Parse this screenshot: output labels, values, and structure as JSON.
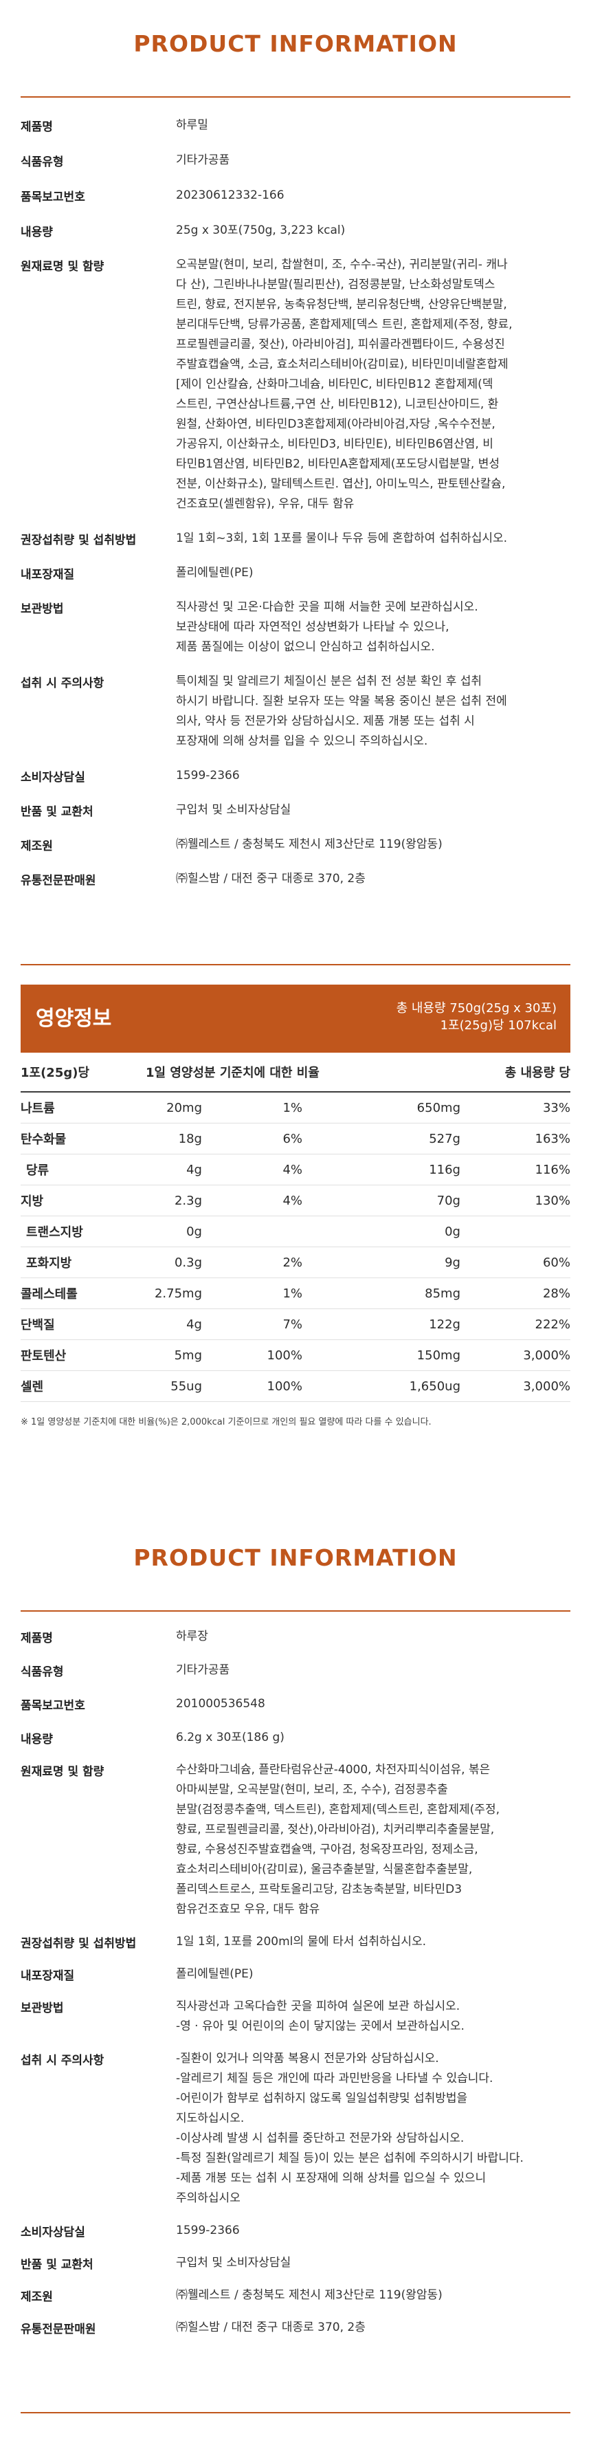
{
  "section1": {
    "title": "PRODUCT INFORMATION",
    "rows": [
      {
        "label": "제품명",
        "lines": [
          "하루밀"
        ]
      },
      {
        "label": "식품유형",
        "lines": [
          "기타가공품"
        ]
      },
      {
        "label": "품목보고번호",
        "lines": [
          "20230612332-166"
        ]
      },
      {
        "label": "내용량",
        "lines": [
          "25g x 30포(750g, 3,223 kcal)"
        ]
      },
      {
        "label": "원재료명 및 함량",
        "lines": [
          "오곡분말(현미, 보리, 찹쌀현미, 조, 수수-국산), 귀리분말(귀리- 캐나",
          "다 산), 그린바나나분말(필리핀산), 검정콩분말, 난소화성말토덱스",
          "트린, 향료, 전지분유, 농축유청단백, 분리유청단백, 산양유단백분말,",
          "분리대두단백, 당류가공품, 혼합제제[덱스 트린, 혼합제제(주정, 향료,",
          "프로필렌글리콜, 젖산), 아라비아검], 피쉬콜라겐펩타이드, 수용성진",
          "주발효캡슐액, 소금, 효소처리스테비아(감미료), 비타민미네랄혼합제",
          "[제이 인산칼슘, 산화마그네슘, 비타민C, 비타민B12 혼합제제(덱",
          "스트린, 구연산삼나트륨,구연 산, 비타민B12), 니코틴산아미드, 환",
          "원철, 산화아연, 비타민D3혼합제제(아라비아검,자당 ,옥수수전분,",
          "가공유지, 이산화규소, 비타민D3, 비타민E), 비타민B6염산염, 비",
          "타민B1염산염, 비타민B2, 비타민A혼합제제(포도당시럽분말, 변성",
          "전분, 이산화규소), 말테텍스트린. 엽산], 아미노믹스, 판토텐산칼슘,",
          "건조효모(셀렌함유), 우유, 대두 함유"
        ]
      },
      {
        "label": "권장섭취량 및 섭취방법",
        "lines": [
          "1일 1회~3회, 1회 1포를 물이나 두유 등에 혼합하여 섭취하십시오."
        ]
      },
      {
        "label": "내포장재질",
        "lines": [
          "폴리에틸렌(PE)"
        ]
      },
      {
        "label": "보관방법",
        "lines": [
          "직사광선 및 고온·다습한 곳을 피해 서늘한 곳에 보관하십시오.",
          "보관상태에 따라 자연적인 성상변화가 나타날 수 있으나,",
          "제품 품질에는 이상이 없으니 안심하고 섭취하십시오."
        ]
      },
      {
        "label": "섭취 시 주의사항",
        "lines": [
          "특이체질 및 알레르기 체질이신 분은 섭취 전 성분 확인 후 섭취",
          "하시기 바랍니다. 질환 보유자 또는 약물 복용 중이신 분은 섭취 전에",
          "의사, 약사 등 전문가와 상담하십시오. 제품 개봉 또는 섭취 시",
          "포장재에 의해 상처를 입을 수 있으니 주의하십시오."
        ]
      },
      {
        "label": "소비자상담실",
        "lines": [
          "1599-2366"
        ]
      },
      {
        "label": "반품 및 교환처",
        "lines": [
          "구입처 및 소비자상담실"
        ]
      },
      {
        "label": "제조원",
        "lines": [
          "㈜웰레스트 / 충청북도 제천시 제3산단로 119(왕암동)"
        ]
      },
      {
        "label": "유통전문판매원",
        "lines": [
          "㈜힐스밤 / 대전 중구 대종로 370, 2층"
        ]
      }
    ]
  },
  "nutrition": {
    "title": "영양정보",
    "total_line1": "총 내용량 750g(25g x 30포)",
    "total_line2": "1포(25g)당 107kcal",
    "col_serving": "1포(25g)당",
    "col_ratio": "1일 영양성분 기준치에 대한 비율",
    "col_total": "총 내용량 당",
    "rows": [
      {
        "name": "나트륨",
        "amt": "20mg",
        "pct": "1%",
        "tot": "650mg",
        "tpct": "33%",
        "sub": false
      },
      {
        "name": "탄수화물",
        "amt": "18g",
        "pct": "6%",
        "tot": "527g",
        "tpct": "163%",
        "sub": false
      },
      {
        "name": "당류",
        "amt": "4g",
        "pct": "4%",
        "tot": "116g",
        "tpct": "116%",
        "sub": true
      },
      {
        "name": "지방",
        "amt": "2.3g",
        "pct": "4%",
        "tot": "70g",
        "tpct": "130%",
        "sub": false
      },
      {
        "name": "트랜스지방",
        "amt": "0g",
        "pct": "",
        "tot": "0g",
        "tpct": "",
        "sub": true
      },
      {
        "name": "포화지방",
        "amt": "0.3g",
        "pct": "2%",
        "tot": "9g",
        "tpct": "60%",
        "sub": true
      },
      {
        "name": "콜레스테롤",
        "amt": "2.75mg",
        "pct": "1%",
        "tot": "85mg",
        "tpct": "28%",
        "sub": false
      },
      {
        "name": "단백질",
        "amt": "4g",
        "pct": "7%",
        "tot": "122g",
        "tpct": "222%",
        "sub": false
      },
      {
        "name": "판토텐산",
        "amt": "5mg",
        "pct": "100%",
        "tot": "150mg",
        "tpct": "3,000%",
        "sub": false
      },
      {
        "name": "셀렌",
        "amt": "55ug",
        "pct": "100%",
        "tot": "1,650ug",
        "tpct": "3,000%",
        "sub": false
      }
    ],
    "note": "※ 1일 영양성분 기준치에 대한 비율(%)은 2,000kcal 기준이므로 개인의 필요 열량에 따라 다를 수 있습니다."
  },
  "section2": {
    "title": "PRODUCT INFORMATION",
    "rows": [
      {
        "label": "제품명",
        "lines": [
          "하루장"
        ]
      },
      {
        "label": "식품유형",
        "lines": [
          "기타가공품"
        ]
      },
      {
        "label": "품목보고번호",
        "lines": [
          "201000536548"
        ]
      },
      {
        "label": "내용량",
        "lines": [
          "6.2g x 30포(186 g)"
        ]
      },
      {
        "label": "원재료명 및 함량",
        "lines": [
          "수산화마그네슘, 플란타럼유산균-4000, 차전자피식이섬유, 볶은",
          "아마씨분말, 오곡분말(현미, 보리, 조, 수수), 검정콩추출",
          "분말(검정콩추출액, 덱스트린), 혼합제제(덱스트린, 혼합제제(주정,",
          "향료, 프로필렌글리콜, 젖산),아라비아검), 치커리뿌리추출물분말,",
          "향료, 수용성진주발효캡슐액, 구아검, 청옥장프라임, 정제소금,",
          "효소처리스테비아(감미료), 울금추출분말, 식물혼합추출분말,",
          "폴리덱스트로스, 프락토올리고당, 감초농축분말, 비타민D3",
          "함유건조효모 우유, 대두 함유"
        ]
      },
      {
        "label": "권장섭취량 및 섭취방법",
        "lines": [
          "1일 1회, 1포를 200ml의 물에 타서 섭취하십시오."
        ]
      },
      {
        "label": "내포장재질",
        "lines": [
          "폴리에틸렌(PE)"
        ]
      },
      {
        "label": "보관방법",
        "lines": [
          "직사광선과 고옥다습한 곳을 피하여 실온에 보관 하십시오.",
          "-영 · 유아 및 어린이의 손이 닿지않는 곳에서 보관하십시오."
        ]
      },
      {
        "label": "섭취 시 주의사항",
        "lines": [
          "-질환이 있거나 의약품 복용시 전문가와 상담하십시오.",
          "-알레르기 체질 등은 개인에 따라 과민반응을 나타낼 수 있습니다.",
          "-어린이가 함부로 섭취하지 않도록 일일섭취량및 섭취방법을",
          "지도하십시오.",
          "-이상사례 발생 시 섭취를 중단하고 전문가와 상담하십시오.",
          "-특정 질환(알레르기 체질 등)이 있는 분은 섭취에 주의하시기 바랍니다.",
          "-제품 개봉 또는 섭취 시 포장재에 의해 상처를 입으실 수 있으니",
          "주의하십시오"
        ]
      },
      {
        "label": "소비자상담실",
        "lines": [
          "1599-2366"
        ]
      },
      {
        "label": "반품 및 교환처",
        "lines": [
          "구입처 및 소비자상담실"
        ]
      },
      {
        "label": "제조원",
        "lines": [
          "㈜웰레스트 / 충청북도 제천시 제3산단로 119(왕암동)"
        ]
      },
      {
        "label": "유통전문판매원",
        "lines": [
          "㈜힐스밤 / 대전 중구 대종로 370, 2층"
        ]
      }
    ]
  }
}
